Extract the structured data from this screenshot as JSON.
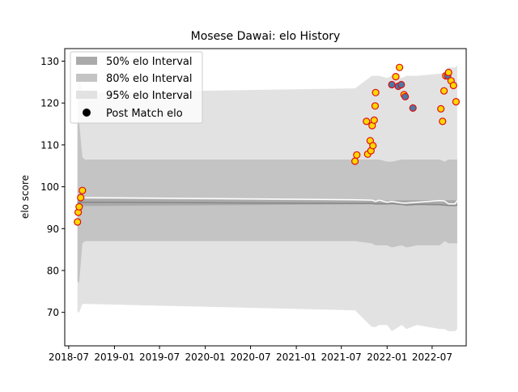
{
  "chart_data": {
    "type": "scatter",
    "title": "Mosese Dawai: elo History",
    "xlabel": "",
    "ylabel": "elo score",
    "x_is_date": true,
    "xlim": [
      "2018-06-15",
      "2022-11-15"
    ],
    "ylim": [
      62,
      133
    ],
    "x_ticks": [
      "2018-07",
      "2019-01",
      "2019-07",
      "2020-01",
      "2020-07",
      "2021-01",
      "2021-07",
      "2022-01",
      "2022-07"
    ],
    "y_ticks": [
      70,
      80,
      90,
      100,
      110,
      120,
      130
    ],
    "grid": false,
    "legend": {
      "placement": "top-left",
      "entries": [
        "50% elo Interval",
        "80% elo Interval",
        "95% elo Interval",
        "Post Match elo"
      ]
    },
    "colors": {
      "band50": "#aaaaaa",
      "band80": "#c4c4c4",
      "band95": "#e2e2e2",
      "median_line": "#888888",
      "mean_line": "#ffffff",
      "marker_face_win": "#ffd700",
      "marker_face_loss": "#4a79a8",
      "marker_edge": "#dd1111"
    },
    "bands": {
      "x": [
        "2018-08-05",
        "2018-08-12",
        "2018-08-25",
        "2018-09-05",
        "2018-09-10",
        "2021-08-25",
        "2021-11-01",
        "2021-11-15",
        "2021-12-01",
        "2022-01-01",
        "2022-01-20",
        "2022-03-01",
        "2022-03-20",
        "2022-05-01",
        "2022-08-01",
        "2022-08-20",
        "2022-09-05",
        "2022-10-01",
        "2022-10-10"
      ],
      "p50": [
        [
          95.0,
          96.8
        ],
        [
          95.4,
          97.1
        ],
        [
          95.4,
          97.1
        ],
        [
          95.4,
          97.1
        ],
        [
          95.4,
          97.1
        ],
        [
          95.8,
          96.7
        ],
        [
          95.8,
          96.7
        ],
        [
          95.8,
          96.7
        ],
        [
          95.8,
          96.7
        ],
        [
          95.8,
          96.7
        ],
        [
          95.8,
          96.7
        ],
        [
          95.6,
          96.8
        ],
        [
          95.6,
          96.8
        ],
        [
          95.6,
          96.8
        ],
        [
          95.6,
          96.8
        ],
        [
          95.6,
          96.8
        ],
        [
          95.4,
          96.8
        ],
        [
          95.4,
          96.8
        ],
        [
          95.4,
          96.8
        ]
      ],
      "p80": [
        [
          77.5,
          115.5
        ],
        [
          77.0,
          115.5
        ],
        [
          86.5,
          107.0
        ],
        [
          87.0,
          106.5
        ],
        [
          87.0,
          106.5
        ],
        [
          87.0,
          106.5
        ],
        [
          86.5,
          106.5
        ],
        [
          86.0,
          106.5
        ],
        [
          86.0,
          106.5
        ],
        [
          86.0,
          106.0
        ],
        [
          85.5,
          106.0
        ],
        [
          86.0,
          106.5
        ],
        [
          85.5,
          106.5
        ],
        [
          86.0,
          106.5
        ],
        [
          86.0,
          106.5
        ],
        [
          87.0,
          106.0
        ],
        [
          86.5,
          106.5
        ],
        [
          86.5,
          106.5
        ],
        [
          86.5,
          106.5
        ]
      ],
      "p95": [
        [
          70.0,
          125.0
        ],
        [
          70.0,
          125.5
        ],
        [
          72.0,
          123.0
        ],
        [
          72.0,
          122.5
        ],
        [
          72.0,
          122.5
        ],
        [
          70.5,
          123.5
        ],
        [
          66.5,
          126.5
        ],
        [
          66.5,
          126.5
        ],
        [
          67.0,
          126.5
        ],
        [
          67.0,
          126.0
        ],
        [
          65.5,
          126.5
        ],
        [
          67.0,
          126.0
        ],
        [
          66.0,
          126.5
        ],
        [
          67.0,
          126.5
        ],
        [
          66.0,
          127.0
        ],
        [
          66.0,
          127.5
        ],
        [
          65.5,
          128.5
        ],
        [
          65.5,
          128.5
        ],
        [
          66.0,
          129.0
        ]
      ],
      "median": [
        96.2,
        96.3,
        96.3,
        96.3,
        96.3,
        96.0,
        96.0,
        95.9,
        95.9,
        95.9,
        96.0,
        95.8,
        95.6,
        95.8,
        95.7,
        95.6,
        95.5,
        95.5,
        95.6
      ],
      "mean": [
        97.2,
        97.4,
        97.4,
        97.4,
        97.4,
        96.9,
        96.8,
        96.5,
        96.8,
        96.3,
        96.5,
        96.1,
        96.1,
        96.3,
        96.7,
        96.6,
        95.9,
        95.9,
        96.7
      ]
    },
    "points": [
      {
        "x": "2018-08-05",
        "y": 91.6,
        "result": "win"
      },
      {
        "x": "2018-08-08",
        "y": 93.9,
        "result": "win"
      },
      {
        "x": "2018-08-12",
        "y": 95.2,
        "result": "win"
      },
      {
        "x": "2018-08-18",
        "y": 97.4,
        "result": "win"
      },
      {
        "x": "2018-08-25",
        "y": 99.1,
        "result": "win"
      },
      {
        "x": "2021-08-25",
        "y": 106.1,
        "result": "win"
      },
      {
        "x": "2021-09-01",
        "y": 107.6,
        "result": "win"
      },
      {
        "x": "2021-10-10",
        "y": 115.6,
        "result": "win"
      },
      {
        "x": "2021-10-15",
        "y": 107.8,
        "result": "win"
      },
      {
        "x": "2021-10-25",
        "y": 111.0,
        "result": "win"
      },
      {
        "x": "2021-10-28",
        "y": 108.6,
        "result": "win"
      },
      {
        "x": "2021-11-02",
        "y": 114.6,
        "result": "win"
      },
      {
        "x": "2021-11-05",
        "y": 109.8,
        "result": "win"
      },
      {
        "x": "2021-11-10",
        "y": 115.9,
        "result": "win"
      },
      {
        "x": "2021-11-14",
        "y": 119.3,
        "result": "win"
      },
      {
        "x": "2021-11-16",
        "y": 122.5,
        "result": "win"
      },
      {
        "x": "2022-01-20",
        "y": 124.4,
        "result": "loss"
      },
      {
        "x": "2022-02-05",
        "y": 126.3,
        "result": "win"
      },
      {
        "x": "2022-02-15",
        "y": 124.0,
        "result": "loss"
      },
      {
        "x": "2022-02-20",
        "y": 128.5,
        "result": "win"
      },
      {
        "x": "2022-02-27",
        "y": 124.4,
        "result": "loss"
      },
      {
        "x": "2022-03-10",
        "y": 122.0,
        "result": "win"
      },
      {
        "x": "2022-03-15",
        "y": 121.5,
        "result": "loss"
      },
      {
        "x": "2022-04-15",
        "y": 118.8,
        "result": "loss"
      },
      {
        "x": "2022-08-05",
        "y": 118.6,
        "result": "win"
      },
      {
        "x": "2022-08-12",
        "y": 115.6,
        "result": "win"
      },
      {
        "x": "2022-08-18",
        "y": 122.9,
        "result": "win"
      },
      {
        "x": "2022-08-25",
        "y": 126.5,
        "result": "win"
      },
      {
        "x": "2022-09-01",
        "y": 126.5,
        "result": "loss"
      },
      {
        "x": "2022-09-05",
        "y": 127.3,
        "result": "win"
      },
      {
        "x": "2022-09-15",
        "y": 125.3,
        "result": "win"
      },
      {
        "x": "2022-09-25",
        "y": 124.2,
        "result": "win"
      },
      {
        "x": "2022-10-05",
        "y": 120.3,
        "result": "win"
      }
    ]
  }
}
